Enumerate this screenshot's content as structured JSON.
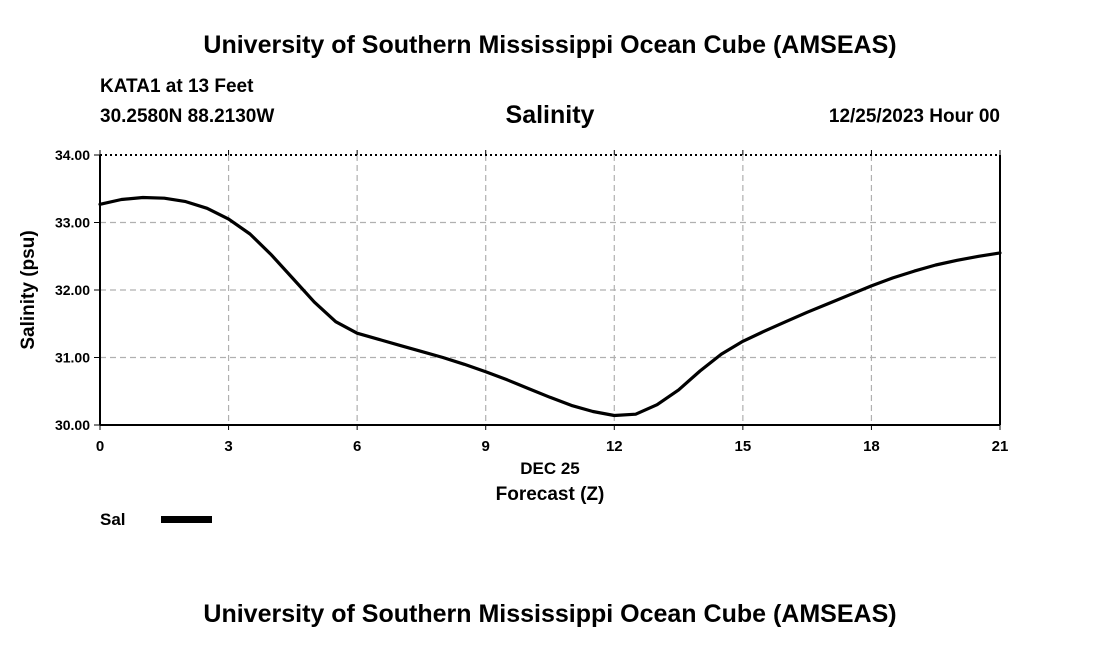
{
  "header": {
    "title": "University of Southern Mississippi Ocean Cube (AMSEAS)",
    "station": "KATA1 at 13 Feet",
    "coordinates": "30.2580N  88.2130W",
    "datetime": "12/25/2023 Hour 00"
  },
  "footer": {
    "title": "University of Southern Mississippi Ocean Cube (AMSEAS)"
  },
  "colors": {
    "line": "#000000",
    "grid": "#b0b0b0",
    "background": "#ffffff"
  },
  "chart_data": {
    "type": "line",
    "title": "Salinity",
    "xlabel": "Forecast (Z)",
    "xsublabel": "DEC 25",
    "ylabel": "Salinity (psu)",
    "xlim": [
      0,
      21
    ],
    "ylim": [
      30,
      34
    ],
    "xticks": [
      0,
      3,
      6,
      9,
      12,
      15,
      18,
      21
    ],
    "yticks": [
      "30.00",
      "31.00",
      "32.00",
      "33.00",
      "34.00"
    ],
    "grid": true,
    "legend_position": "bottom-left",
    "series": [
      {
        "name": "Sal",
        "x": [
          0,
          0.5,
          1,
          1.5,
          2,
          2.5,
          3,
          3.5,
          4,
          4.5,
          5,
          5.5,
          6,
          6.5,
          7,
          7.5,
          8,
          8.5,
          9,
          9.5,
          10,
          10.5,
          11,
          11.5,
          12,
          12.5,
          13,
          13.5,
          14,
          14.5,
          15,
          15.5,
          16,
          16.5,
          17,
          17.5,
          18,
          18.5,
          19,
          19.5,
          20,
          20.5,
          21
        ],
        "values": [
          33.27,
          33.34,
          33.37,
          33.36,
          33.31,
          33.21,
          33.05,
          32.83,
          32.52,
          32.17,
          31.82,
          31.53,
          31.36,
          31.27,
          31.18,
          31.09,
          31.0,
          30.9,
          30.79,
          30.67,
          30.54,
          30.41,
          30.29,
          30.2,
          30.14,
          30.16,
          30.3,
          30.52,
          30.8,
          31.05,
          31.24,
          31.39,
          31.53,
          31.67,
          31.8,
          31.93,
          32.06,
          32.18,
          32.28,
          32.37,
          32.44,
          32.5,
          32.55
        ]
      }
    ]
  }
}
